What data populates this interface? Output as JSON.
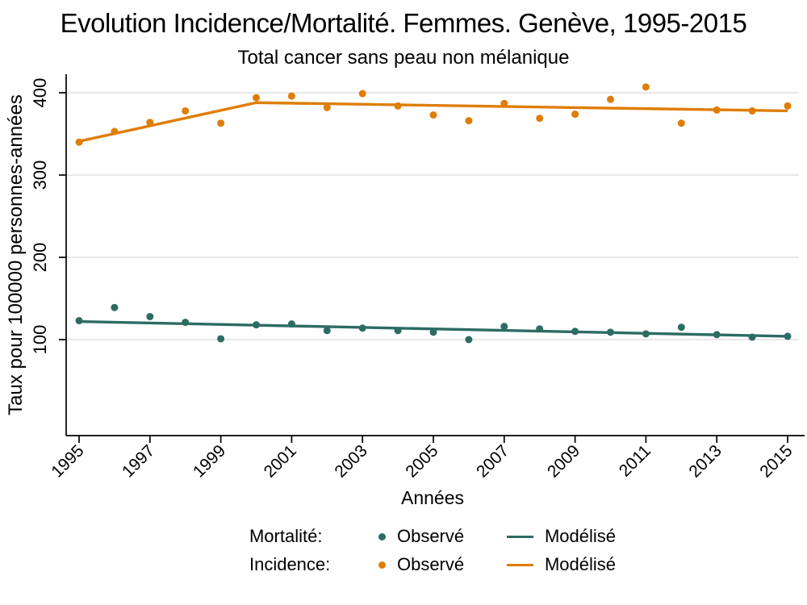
{
  "chart_data": {
    "type": "scatter",
    "title": "Evolution Incidence/Mortalité. Femmes. Genève, 1995-2015",
    "subtitle": "Total cancer sans peau non mélanique",
    "xlabel": "Années",
    "ylabel": "Taux pour 100000 personnes-années",
    "years": [
      1995,
      1996,
      1997,
      1998,
      1999,
      2000,
      2001,
      2002,
      2003,
      2004,
      2005,
      2006,
      2007,
      2008,
      2009,
      2010,
      2011,
      2012,
      2013,
      2014,
      2015
    ],
    "x_ticks": [
      1995,
      1997,
      1999,
      2001,
      2003,
      2005,
      2007,
      2009,
      2011,
      2013,
      2015
    ],
    "y_ticks": [
      100,
      200,
      300,
      400
    ],
    "ylim": [
      0,
      410
    ],
    "xlim": [
      1994.6,
      2015.5
    ],
    "grid": "horizontal-only",
    "legend_position": "bottom",
    "series": [
      {
        "name": "Mortalité Observé",
        "kind": "scatter",
        "color": "#2c6c63",
        "values": [
          123,
          139,
          128,
          121,
          101,
          118,
          119,
          111,
          114,
          111,
          109,
          100,
          116,
          113,
          110,
          109,
          107,
          115,
          106,
          103,
          104
        ]
      },
      {
        "name": "Mortalité Modélisé",
        "kind": "line",
        "color": "#2c6c63",
        "x": [
          1995,
          2015
        ],
        "y": [
          122,
          104
        ]
      },
      {
        "name": "Incidence Observé",
        "kind": "scatter",
        "color": "#df7d04",
        "values": [
          340,
          353,
          364,
          378,
          363,
          394,
          396,
          382,
          399,
          384,
          373,
          366,
          387,
          369,
          374,
          392,
          407,
          363,
          379,
          378,
          384
        ]
      },
      {
        "name": "Incidence Modélisé",
        "kind": "line",
        "color": "#df7d04",
        "x": [
          1995,
          2000,
          2015
        ],
        "y": [
          341,
          388,
          378
        ]
      }
    ]
  },
  "legend": {
    "rows": [
      {
        "group": "Mortalité:",
        "observed_label": "Observé",
        "modeled_label": "Modélisé",
        "color": "#2c6c63"
      },
      {
        "group": "Incidence:",
        "observed_label": "Observé",
        "modeled_label": "Modélisé",
        "color": "#df7d04"
      }
    ]
  },
  "colors": {
    "mortality": "#2c6c63",
    "incidence": "#df7d04",
    "grid": "#d9d9d9",
    "axis": "#000000",
    "background": "#ffffff"
  }
}
